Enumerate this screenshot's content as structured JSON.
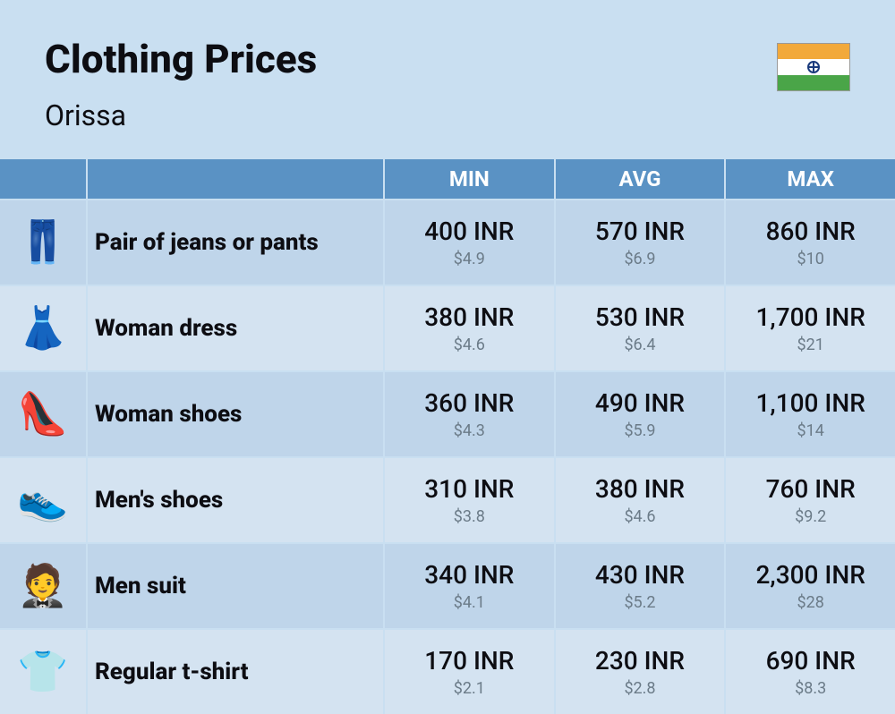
{
  "header": {
    "title": "Clothing Prices",
    "location": "Orissa"
  },
  "columns": {
    "min": "MIN",
    "avg": "AVG",
    "max": "MAX"
  },
  "rows": [
    {
      "icon": "👖",
      "label": "Pair of jeans or pants",
      "min_main": "400 INR",
      "min_sub": "$4.9",
      "avg_main": "570 INR",
      "avg_sub": "$6.9",
      "max_main": "860 INR",
      "max_sub": "$10"
    },
    {
      "icon": "👗",
      "label": "Woman dress",
      "min_main": "380 INR",
      "min_sub": "$4.6",
      "avg_main": "530 INR",
      "avg_sub": "$6.4",
      "max_main": "1,700 INR",
      "max_sub": "$21"
    },
    {
      "icon": "👠",
      "label": "Woman shoes",
      "min_main": "360 INR",
      "min_sub": "$4.3",
      "avg_main": "490 INR",
      "avg_sub": "$5.9",
      "max_main": "1,100 INR",
      "max_sub": "$14"
    },
    {
      "icon": "👟",
      "label": "Men's shoes",
      "min_main": "310 INR",
      "min_sub": "$3.8",
      "avg_main": "380 INR",
      "avg_sub": "$4.6",
      "max_main": "760 INR",
      "max_sub": "$9.2"
    },
    {
      "icon": "🤵",
      "label": "Men suit",
      "min_main": "340 INR",
      "min_sub": "$4.1",
      "avg_main": "430 INR",
      "avg_sub": "$5.2",
      "max_main": "2,300 INR",
      "max_sub": "$28"
    },
    {
      "icon": "👕",
      "label": "Regular t-shirt",
      "min_main": "170 INR",
      "min_sub": "$2.1",
      "avg_main": "230 INR",
      "avg_sub": "$2.8",
      "max_main": "690 INR",
      "max_sub": "$8.3"
    }
  ],
  "style": {
    "page_bg": "#c9dff1",
    "header_bg": "#5a92c4",
    "row_even_bg": "#bfd5ea",
    "row_odd_bg": "#d4e3f1",
    "title_color": "#0d0d12",
    "subval_color": "#6b7b88",
    "flag_colors": {
      "top": "#f2a93b",
      "mid": "#ffffff",
      "bot": "#4aa548",
      "wheel": "#1a3a7c"
    }
  }
}
